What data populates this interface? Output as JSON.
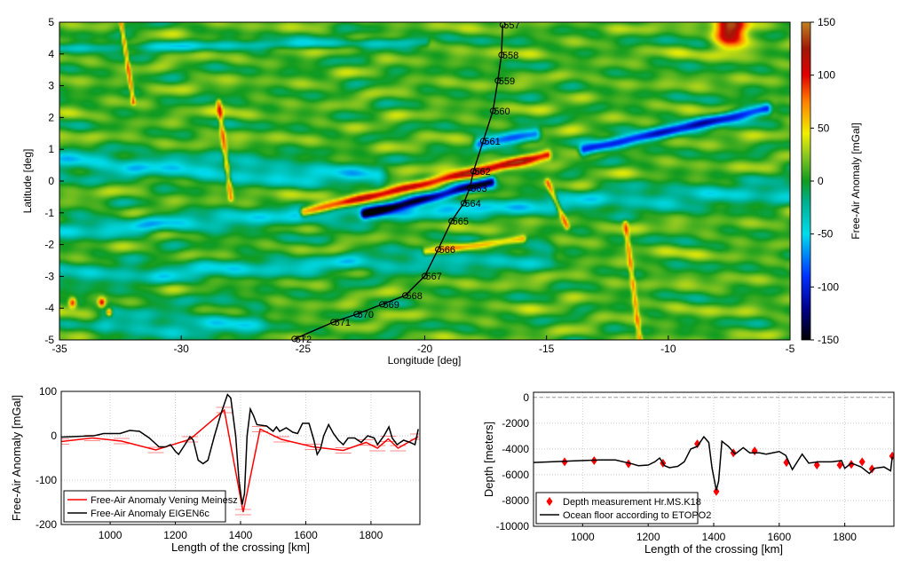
{
  "chart_data": [
    {
      "type": "heatmap",
      "xlabel": "Longitude [deg]",
      "ylabel": "Latitude [deg]",
      "xlim": [
        -35,
        -5
      ],
      "ylim": [
        -5,
        5
      ],
      "xticks": [
        "-35",
        "-30",
        "-25",
        "-20",
        "-15",
        "-10",
        "-5"
      ],
      "yticks": [
        "5",
        "4",
        "3",
        "2",
        "1",
        "0",
        "-1",
        "-2",
        "-3",
        "-4",
        "-5"
      ],
      "colorbar": {
        "label": "Free-Air Anomaly [mGal]",
        "range": [
          -150,
          150
        ],
        "ticks": [
          "150",
          "100",
          "50",
          "0",
          "-50",
          "-100",
          "-150"
        ],
        "colormap": [
          [
            "-150",
            "#000000"
          ],
          [
            "-120",
            "#00008c"
          ],
          [
            "-90",
            "#0030ff"
          ],
          [
            "-50",
            "#00dcec"
          ],
          [
            "-20",
            "#00b090"
          ],
          [
            "0",
            "#109c20"
          ],
          [
            "25",
            "#90c820"
          ],
          [
            "45",
            "#f0f000"
          ],
          [
            "75",
            "#ff8000"
          ],
          [
            "100",
            "#e00000"
          ],
          [
            "125",
            "#a01808"
          ],
          [
            "150",
            "#c08020"
          ]
        ]
      },
      "track": {
        "color": "#000000",
        "stations": [
          {
            "label": "557",
            "lon": -16.8,
            "lat": 4.92
          },
          {
            "label": "558",
            "lon": -16.85,
            "lat": 3.97
          },
          {
            "label": "559",
            "lon": -17.0,
            "lat": 3.16
          },
          {
            "label": "560",
            "lon": -17.2,
            "lat": 2.21
          },
          {
            "label": "561",
            "lon": -17.6,
            "lat": 1.26
          },
          {
            "label": "562",
            "lon": -18.0,
            "lat": 0.31
          },
          {
            "label": "563",
            "lon": -18.15,
            "lat": -0.22
          },
          {
            "label": "564",
            "lon": -18.4,
            "lat": -0.7
          },
          {
            "label": "565",
            "lon": -18.9,
            "lat": -1.26
          },
          {
            "label": "566",
            "lon": -19.45,
            "lat": -2.15
          },
          {
            "label": "567",
            "lon": -20.0,
            "lat": -2.99
          },
          {
            "label": "568",
            "lon": -20.8,
            "lat": -3.6
          },
          {
            "label": "569",
            "lon": -21.75,
            "lat": -3.88
          },
          {
            "label": "570",
            "lon": -22.8,
            "lat": -4.19
          },
          {
            "label": "571",
            "lon": -23.75,
            "lat": -4.44
          },
          {
            "label": "572",
            "lon": -25.35,
            "lat": -4.97
          }
        ]
      }
    },
    {
      "type": "line",
      "xlabel": "Length of the crossing [km]",
      "ylabel": "Free-Air Anomaly [mGal]",
      "xlim": [
        850,
        1950
      ],
      "ylim": [
        -200,
        100
      ],
      "xticks": [
        "1000",
        "1200",
        "1400",
        "1600",
        "1800"
      ],
      "yticks": [
        "100",
        "0",
        "-100",
        "-200"
      ],
      "grid": true,
      "legend": "bottom-left",
      "series": [
        {
          "name": "Free-Air Anomaly Vening Meinesz",
          "color": "#ff0000",
          "errorbars": true,
          "x": [
            850,
            945,
            1035,
            1140,
            1245,
            1350,
            1408,
            1460,
            1525,
            1622,
            1715,
            1785,
            1820,
            1853,
            1883,
            1945
          ],
          "y": [
            -13,
            -5,
            -12,
            -32,
            -8,
            58,
            -172,
            15,
            -8,
            -25,
            -33,
            -15,
            -28,
            -7,
            -28,
            -2
          ]
        },
        {
          "name": "Free-Air Anomaly EIGEN6c",
          "color": "#000000",
          "x": [
            850,
            950,
            980,
            1000,
            1030,
            1060,
            1090,
            1120,
            1150,
            1170,
            1185,
            1200,
            1210,
            1225,
            1245,
            1255,
            1270,
            1285,
            1300,
            1320,
            1340,
            1360,
            1370,
            1385,
            1395,
            1405,
            1412,
            1420,
            1430,
            1440,
            1450,
            1480,
            1500,
            1510,
            1520,
            1540,
            1560,
            1575,
            1590,
            1610,
            1625,
            1635,
            1645,
            1655,
            1670,
            1685,
            1700,
            1715,
            1730,
            1750,
            1770,
            1790,
            1810,
            1820,
            1840,
            1855,
            1865,
            1880,
            1900,
            1920,
            1935,
            1945
          ],
          "y": [
            -3,
            0,
            5,
            5,
            5,
            12,
            10,
            -5,
            -25,
            -25,
            -20,
            -35,
            -42,
            -25,
            -2,
            -10,
            -55,
            -63,
            -55,
            0,
            50,
            93,
            85,
            0,
            -100,
            -155,
            -130,
            0,
            60,
            45,
            25,
            22,
            10,
            20,
            10,
            18,
            8,
            5,
            28,
            28,
            -10,
            -42,
            -30,
            0,
            25,
            5,
            -10,
            -20,
            -5,
            -5,
            -15,
            0,
            -5,
            -20,
            0,
            20,
            -5,
            -20,
            -10,
            -15,
            -20,
            15
          ]
        }
      ]
    },
    {
      "type": "line",
      "xlabel": "Length of the crossing [km]",
      "ylabel": "Depth [meters]",
      "xlim": [
        850,
        1950
      ],
      "ylim": [
        -10000,
        400
      ],
      "xticks": [
        "1000",
        "1200",
        "1400",
        "1600",
        "1800"
      ],
      "yticks": [
        "0",
        "-2000",
        "-4000",
        "-6000",
        "-8000",
        "-10000"
      ],
      "grid": true,
      "reference_line": 0,
      "legend": "bottom-left",
      "series": [
        {
          "name": "Depth measurement Hr.MS.K18",
          "color": "#ff0000",
          "marker": "diamond",
          "x": [
            945,
            1035,
            1140,
            1245,
            1350,
            1408,
            1460,
            1525,
            1622,
            1715,
            1785,
            1820,
            1853,
            1883,
            1945
          ],
          "y": [
            -5000,
            -4900,
            -5150,
            -5100,
            -3600,
            -7300,
            -4300,
            -4150,
            -5050,
            -5250,
            -5250,
            -5200,
            -5000,
            -5550,
            -4550
          ]
        },
        {
          "name": "Ocean floor according to ETOPO2",
          "color": "#000000",
          "x": [
            850,
            950,
            1050,
            1100,
            1150,
            1170,
            1200,
            1220,
            1235,
            1250,
            1265,
            1290,
            1310,
            1330,
            1350,
            1370,
            1385,
            1395,
            1408,
            1415,
            1425,
            1445,
            1465,
            1490,
            1510,
            1540,
            1560,
            1580,
            1600,
            1620,
            1640,
            1655,
            1670,
            1690,
            1720,
            1760,
            1790,
            1800,
            1820,
            1850,
            1875,
            1890,
            1920,
            1940,
            1945
          ],
          "y": [
            -5050,
            -4950,
            -4850,
            -4850,
            -5150,
            -5300,
            -5250,
            -5000,
            -4700,
            -5300,
            -5450,
            -5350,
            -5000,
            -4000,
            -3800,
            -3050,
            -3500,
            -5500,
            -7200,
            -6500,
            -3400,
            -3800,
            -4400,
            -3900,
            -4300,
            -4300,
            -4400,
            -4300,
            -4200,
            -4500,
            -5600,
            -5000,
            -4400,
            -5100,
            -5000,
            -5000,
            -4900,
            -5500,
            -5100,
            -5400,
            -5900,
            -5500,
            -5400,
            -5700,
            -4600
          ]
        }
      ]
    }
  ]
}
